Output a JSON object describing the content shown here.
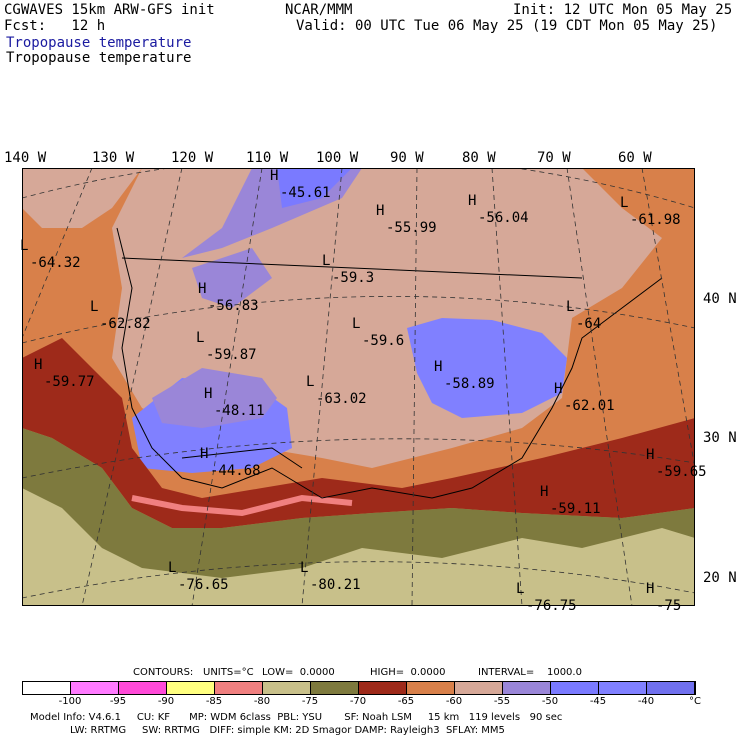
{
  "header": {
    "title_left": "CGWAVES 15km ARW-GFS init",
    "title_center": "NCAR/MMM",
    "init": "Init: 12 UTC Mon 05 May 25",
    "fcst": "Fcst:   12 h",
    "valid": "Valid: 00 UTC Tue 06 May 25 (19 CDT Mon 05 May 25)",
    "field_blue": "Tropopause temperature",
    "field_black": "Tropopause temperature"
  },
  "longitude_labels": [
    "140 W",
    "130 W",
    "120 W",
    "110 W",
    "100 W",
    "90 W",
    "80 W",
    "70 W",
    "60 W"
  ],
  "latitude_labels": [
    "40 N",
    "30 N",
    "20 N"
  ],
  "map_labels": [
    {
      "kind": "H",
      "value": "-45.61"
    },
    {
      "kind": "H",
      "value": "-55.99"
    },
    {
      "kind": "H",
      "value": "-56.04"
    },
    {
      "kind": "L",
      "value": "-61.98"
    },
    {
      "kind": "L",
      "value": "-64.32"
    },
    {
      "kind": "L",
      "value": "-59.3"
    },
    {
      "kind": "H",
      "value": "-56.83"
    },
    {
      "kind": "L",
      "value": "-62.82"
    },
    {
      "kind": "L",
      "value": "-59.6"
    },
    {
      "kind": "L",
      "value": "-64"
    },
    {
      "kind": "L",
      "value": "-59.87"
    },
    {
      "kind": "H",
      "value": "-59.77"
    },
    {
      "kind": "L",
      "value": "-63.02"
    },
    {
      "kind": "H",
      "value": "-58.89"
    },
    {
      "kind": "H",
      "value": "-48.11"
    },
    {
      "kind": "H",
      "value": "-62.01"
    },
    {
      "kind": "H",
      "value": "-44.68"
    },
    {
      "kind": "H",
      "value": "-59.65"
    },
    {
      "kind": "H",
      "value": "-59.11"
    },
    {
      "kind": "L",
      "value": "-76.65"
    },
    {
      "kind": "L",
      "value": "-80.21"
    },
    {
      "kind": "L",
      "value": "-76.75"
    },
    {
      "kind": "H",
      "value": "-75"
    }
  ],
  "contour_info": {
    "contours": "CONTOURS:",
    "units": "UNITS=°C",
    "low": "LOW=  0.0000",
    "high": "HIGH=  0.0000",
    "interval": "INTERVAL=    1000.0"
  },
  "color_scale": {
    "colors": [
      "#ffffff",
      "#ff7aff",
      "#ff4ad8",
      "#ffff80",
      "#f08080",
      "#c8c08a",
      "#7e7a3e",
      "#9e2a1a",
      "#d8804a",
      "#d6a898",
      "#9a86d8",
      "#7a7aff",
      "#8080ff",
      "#7070ee"
    ],
    "ticks": [
      "-100",
      "-95",
      "-90",
      "-85",
      "-80",
      "-75",
      "-70",
      "-65",
      "-60",
      "-55",
      "-50",
      "-45",
      "-40"
    ],
    "unit": "°C"
  },
  "footer": {
    "line1": "Model Info: V4.6.1     CU: KF      MP: WDM 6class  PBL: YSU       SF: Noah LSM     15 km   119 levels   90 sec",
    "line2": "LW: RRTMG     SW: RRTMG   DIFF: simple KM: 2D Smagor DAMP: Rayleigh3  SFLAY: MM5"
  }
}
